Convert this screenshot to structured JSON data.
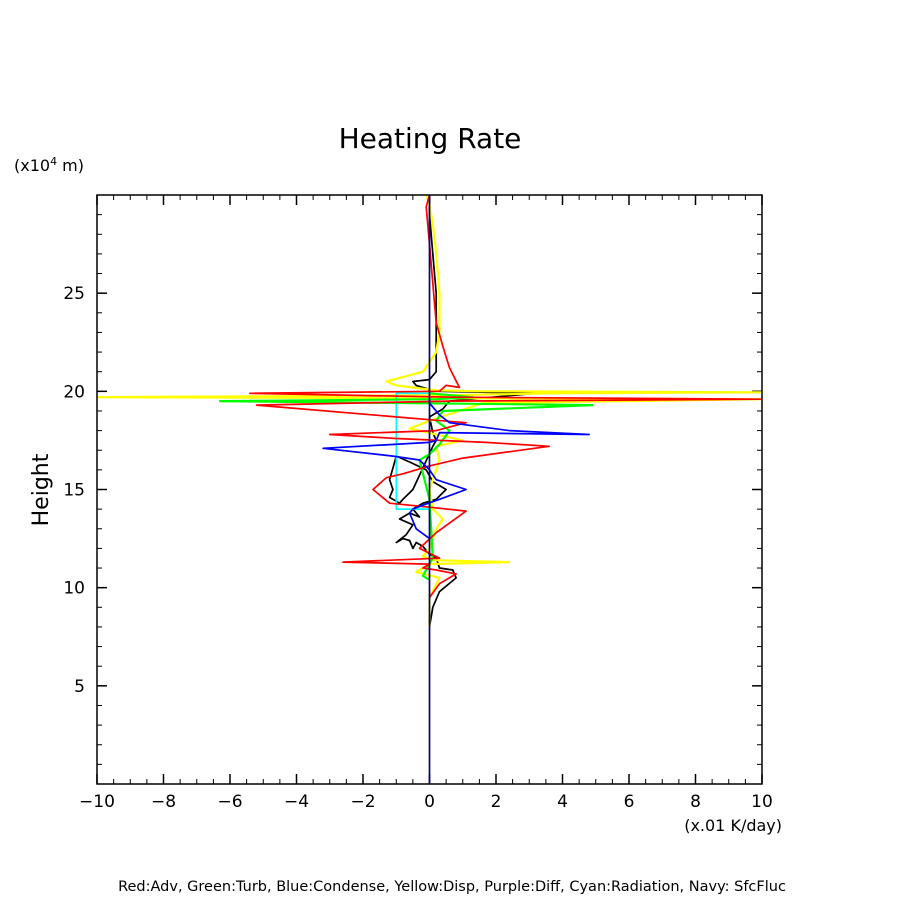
{
  "chart_data": {
    "type": "line",
    "title": "Heating Rate",
    "xlabel": "(x.01 K/day)",
    "ylabel": "Height",
    "yunit_base": "(x10",
    "yunit_exp": "4",
    "yunit_tail": " m)",
    "legend_text": "Red:Adv, Green:Turb, Blue:Condense, Yellow:Disp, Purple:Diff, Cyan:Radiation, Navy: SfcFluc",
    "xlim": [
      -10,
      10
    ],
    "ylim": [
      0,
      30
    ],
    "x_ticks": [
      -10,
      -8,
      -6,
      -4,
      -2,
      0,
      2,
      4,
      6,
      8,
      10
    ],
    "x_tick_labels": [
      "−10",
      "−8",
      "−6",
      "−4",
      "−2",
      "0",
      "2",
      "4",
      "6",
      "8",
      "10"
    ],
    "y_ticks": [
      5,
      10,
      15,
      20,
      25
    ],
    "y_tick_labels": [
      "5",
      "10",
      "15",
      "20",
      "25"
    ],
    "grid": false,
    "series": [
      {
        "name": "Navy",
        "color": "#000080",
        "x": [
          0,
          0
        ],
        "y": [
          0,
          30
        ]
      },
      {
        "name": "Black",
        "color": "#000000",
        "x": [
          0.0,
          0.1,
          0.3,
          0.8,
          0.7,
          0.3,
          0.2,
          0.0,
          -0.2,
          -0.4,
          -0.5,
          -0.6,
          -0.8,
          -1.0,
          -0.7,
          -0.5,
          -0.9,
          -0.6,
          -0.3,
          -0.5,
          -0.2,
          0.2,
          0.5,
          0.1,
          -0.1,
          -0.6,
          -1.0,
          -1.2,
          -1.1,
          -1.2,
          -0.9,
          -0.8,
          -0.5,
          -0.2,
          0.1,
          0.2,
          0.1,
          0.0,
          0.4,
          0.6,
          3.2,
          0.3,
          0.0,
          -0.4,
          -0.5,
          0.0,
          0.2,
          0.2,
          0.2,
          0.1,
          0.0,
          0.0
        ],
        "y": [
          8.0,
          9.0,
          9.8,
          10.5,
          10.9,
          11.0,
          11.5,
          11.7,
          12.1,
          12.3,
          12.0,
          12.4,
          12.5,
          12.3,
          12.7,
          13.2,
          13.5,
          13.8,
          13.6,
          14.0,
          14.3,
          14.5,
          15.0,
          15.4,
          16.0,
          16.4,
          16.7,
          15.5,
          15.0,
          14.6,
          14.3,
          14.5,
          15.0,
          16.1,
          17.2,
          17.5,
          17.9,
          18.7,
          19.1,
          19.5,
          19.9,
          20.0,
          20.1,
          20.3,
          20.5,
          20.6,
          21.0,
          23.0,
          25.0,
          27.0,
          29.0,
          30.0
        ]
      },
      {
        "name": "Red",
        "color": "#ff0000",
        "x": [
          0,
          0.3,
          0.8,
          0.2,
          -0.2,
          0.0,
          -2.6,
          0.3,
          -0.3,
          0.2,
          1.1,
          0.0,
          -1.2,
          -1.7,
          -1.3,
          -0.8,
          0.0,
          1.0,
          3.6,
          1.7,
          0.3,
          -1.0,
          -3.0,
          0.2,
          1.1,
          0.4,
          -5.2,
          0.6,
          10.0,
          0.7,
          -5.4,
          0.3,
          0.5,
          0.9,
          0.6,
          0.4,
          0.2,
          0.1,
          0.0,
          -0.1,
          0.0
        ],
        "y": [
          9.5,
          10.2,
          10.7,
          10.9,
          11.0,
          11.2,
          11.3,
          11.5,
          12.0,
          12.8,
          13.9,
          14.1,
          14.3,
          15.0,
          15.6,
          15.8,
          16.2,
          16.6,
          17.2,
          17.4,
          17.5,
          17.6,
          17.8,
          18.0,
          18.4,
          18.5,
          19.3,
          19.5,
          19.6,
          19.7,
          19.9,
          20.0,
          20.3,
          20.2,
          21.2,
          22.3,
          23.5,
          25.5,
          27.5,
          29.4,
          30.0
        ]
      },
      {
        "name": "Blue",
        "color": "#0000ff",
        "x": [
          0,
          -0.4,
          -0.6,
          -0.5,
          -0.2,
          0.3,
          1.1,
          0.2,
          0.0,
          -0.3,
          -1.1,
          -3.2,
          0.0,
          0.2,
          0.3,
          4.8,
          2.4,
          0.6,
          0.3,
          0.0,
          0.0
        ],
        "y": [
          12.5,
          13.0,
          13.8,
          14.0,
          14.2,
          14.5,
          15.0,
          15.5,
          16.0,
          16.5,
          16.7,
          17.1,
          17.4,
          17.5,
          17.9,
          17.8,
          18.0,
          18.4,
          18.8,
          19.4,
          19.6
        ]
      },
      {
        "name": "Yellow",
        "color": "#ffff00",
        "x": [
          0,
          0.0,
          0.3,
          -0.4,
          0.0,
          2.4,
          0.1,
          -0.2,
          0.0,
          0.1,
          0.2,
          0.4,
          0.1,
          0.0,
          0.3,
          0.2,
          1.0,
          -0.6,
          0.0,
          1.6,
          10.0,
          -10.0,
          0.5,
          3.8,
          10.0,
          1.5,
          0.2,
          -1.0,
          -1.3,
          -0.2,
          0.2,
          0.3,
          0.3,
          0.2,
          0.1,
          0.0,
          -0.1
        ],
        "y": [
          8.0,
          9.5,
          10.5,
          10.8,
          11.2,
          11.3,
          11.4,
          11.6,
          12.0,
          12.5,
          13.0,
          13.5,
          14.0,
          15.0,
          16.5,
          17.2,
          17.5,
          18.1,
          18.5,
          19.4,
          19.6,
          19.7,
          19.8,
          19.9,
          19.95,
          20.0,
          20.05,
          20.3,
          20.5,
          21.0,
          22.0,
          23.0,
          25.0,
          27.0,
          28.5,
          29.5,
          30.0
        ]
      },
      {
        "name": "Green",
        "color": "#00ff00",
        "x": [
          0,
          -0.2,
          0.1,
          0.0,
          -0.3,
          0.0,
          0.3,
          0.6,
          0.2,
          0.4,
          4.9,
          -6.3,
          0.2,
          1.3,
          0.0,
          0.0
        ],
        "y": [
          10.4,
          10.6,
          11.5,
          14.5,
          16.5,
          16.8,
          17.3,
          18.0,
          18.5,
          19.0,
          19.3,
          19.5,
          19.6,
          19.7,
          19.9,
          20.0
        ]
      },
      {
        "name": "Cyan",
        "color": "#00ffff",
        "x": [
          0,
          0,
          -1.0,
          -1.0,
          -1.0,
          -1.0,
          0,
          0
        ],
        "y": [
          13.8,
          14.0,
          14.0,
          16.0,
          17.0,
          19.9,
          19.9,
          20.0
        ]
      }
    ]
  }
}
